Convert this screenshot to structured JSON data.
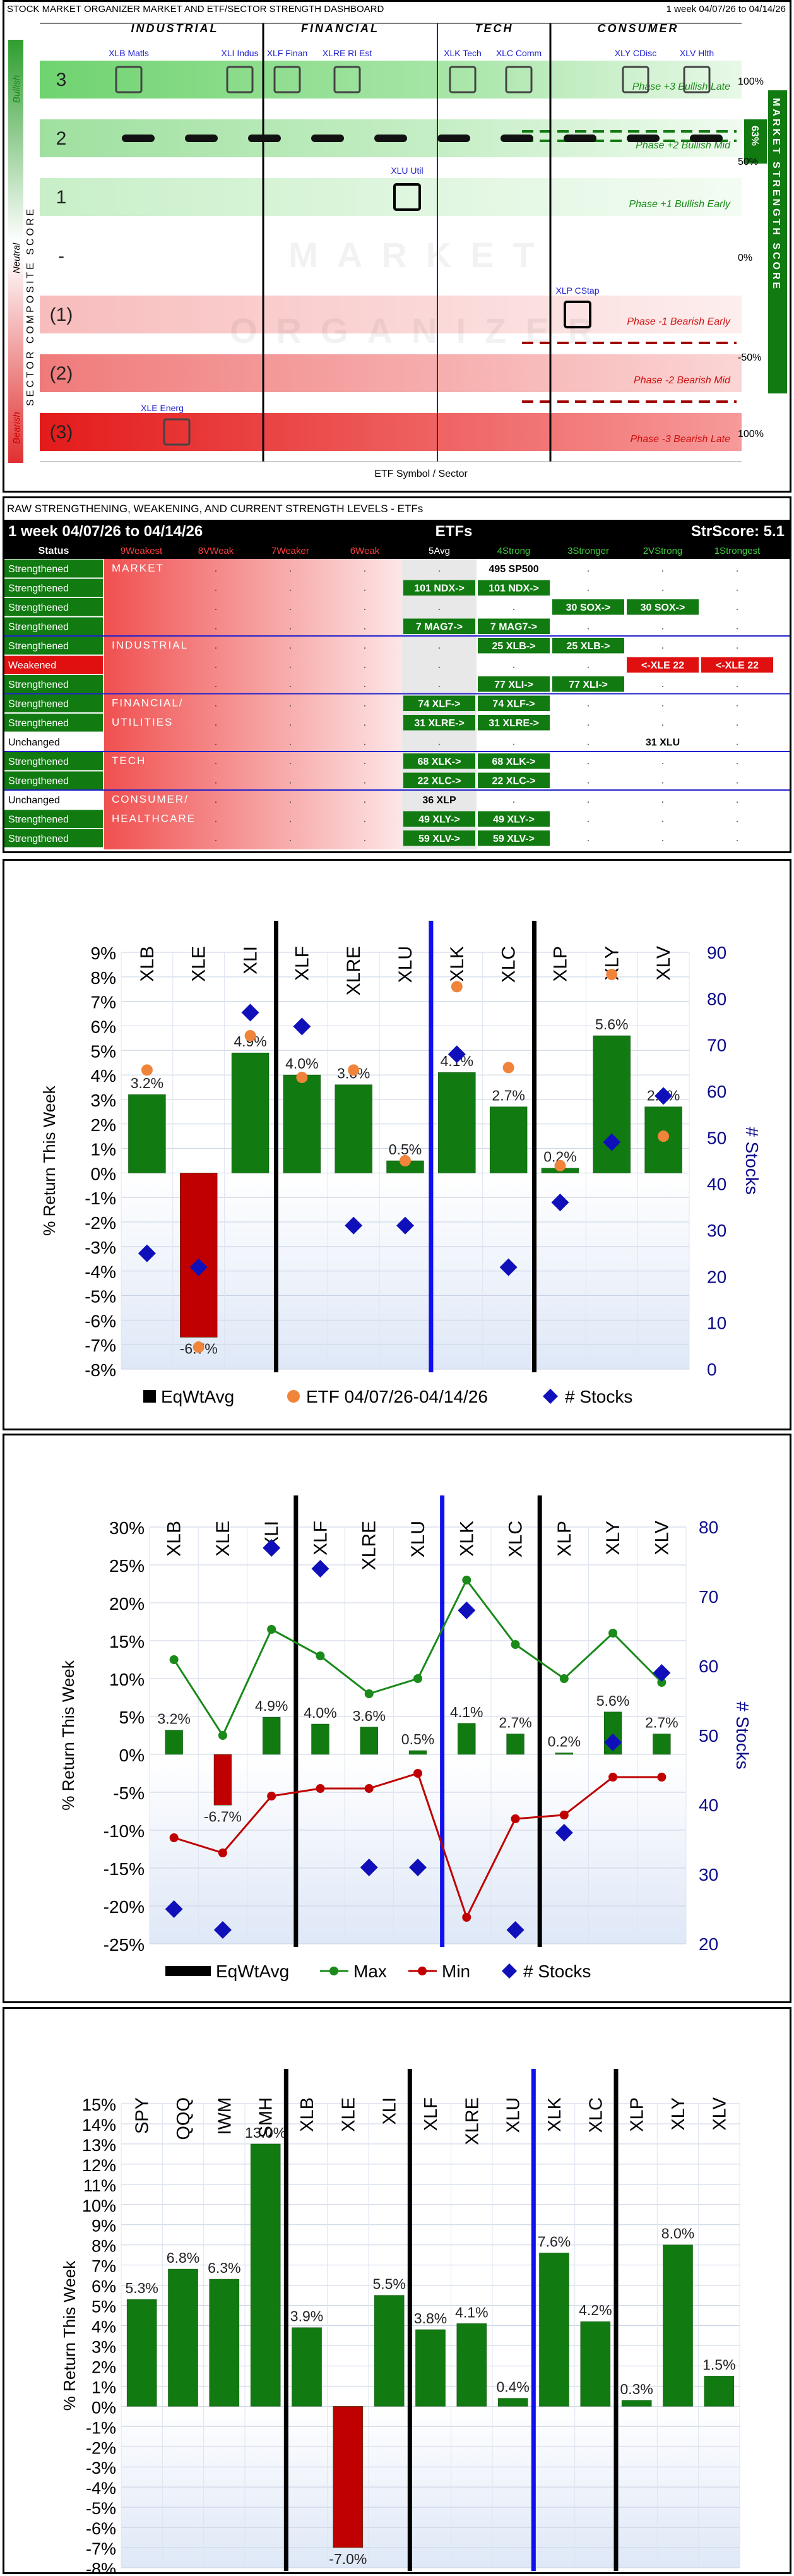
{
  "dashboard": {
    "title": "STOCK MARKET ORGANIZER MARKET AND ETF/SECTOR STRENGTH DASHBOARD",
    "period": "1 week 04/07/26 to 04/14/26",
    "groups": [
      "INDUSTRIAL",
      "FINANCIAL",
      "TECH",
      "CONSUMER"
    ],
    "left_axis_title": "SECTOR COMPOSITE SCORE",
    "right_axis_title": "MARKET STRENGTH SCORE",
    "bullish_label": "Bullish",
    "neutral_label": "Neutral",
    "bearish_label": "Bearish",
    "xlabel": "ETF Symbol / Sector",
    "watermark": [
      "MARKET",
      "ORGANIZER"
    ],
    "score_value": "63%",
    "levels": [
      {
        "label": "3",
        "phase": "Phase +3 Bullish Late",
        "pct": "100%",
        "value": 3
      },
      {
        "label": "2",
        "phase": "Phase +2 Bullish Mid",
        "pct": "50%",
        "value": 2
      },
      {
        "label": "1",
        "phase": "Phase +1 Bullish Early",
        "pct": "",
        "value": 1
      },
      {
        "label": "-",
        "phase": "",
        "pct": "0%",
        "value": 0
      },
      {
        "label": "(1)",
        "phase": "Phase -1 Bearish Early",
        "pct": "",
        "value": -1
      },
      {
        "label": "(2)",
        "phase": "Phase -2 Bearish Mid",
        "pct": "-50%",
        "value": -2
      },
      {
        "label": "(3)",
        "phase": "Phase -3 Bearish Late",
        "pct": "100%",
        "value": -3
      }
    ],
    "etfs": [
      {
        "label": "XLB Matls",
        "score": 3
      },
      {
        "label": "XLE Energ",
        "score": -3
      },
      {
        "label": "XLI Indus",
        "score": 3
      },
      {
        "label": "XLF Finan",
        "score": 3
      },
      {
        "label": "XLRE RI Est",
        "score": 3
      },
      {
        "label": "XLU Util",
        "score": 1
      },
      {
        "label": "XLK Tech",
        "score": 3
      },
      {
        "label": "XLC Comm",
        "score": 3
      },
      {
        "label": "XLP CStap",
        "score": -1
      },
      {
        "label": "XLY CDisc",
        "score": 3
      },
      {
        "label": "XLV Hlth",
        "score": 3
      }
    ]
  },
  "levels_table": {
    "caption": "RAW STRENGTHENING, WEAKENING, AND CURRENT STRENGTH LEVELS - ETFs",
    "period": "1 week 04/07/26 to 04/14/26",
    "center_title": "ETFs",
    "strscore": "StrScore: 5.1",
    "status_header": "Status",
    "columns": [
      "9Weakest",
      "8VWeak",
      "7Weaker",
      "6Weak",
      "5Avg",
      "4Strong",
      "3Stronger",
      "2VStrong",
      "1Strongest"
    ],
    "rows": [
      {
        "status": "Strengthened",
        "group": "MARKET",
        "cells": {
          "5": "495 SP500"
        }
      },
      {
        "status": "Strengthened",
        "group": "",
        "cells": {
          "4": "101 NDX->",
          "5": "101 NDX->"
        }
      },
      {
        "status": "Strengthened",
        "group": "",
        "cells": {
          "6": "30 SOX->",
          "7": "30 SOX->"
        }
      },
      {
        "status": "Strengthened",
        "group": "",
        "cells": {
          "4": "7 MAG7->",
          "5": "7 MAG7->"
        }
      },
      {
        "status": "Strengthened",
        "group": "INDUSTRIAL",
        "cells": {
          "5": "25 XLB->",
          "6": "25 XLB->"
        }
      },
      {
        "status": "Weakened",
        "group": "",
        "cells": {
          "7": "<-XLE 22",
          "8": "<-XLE 22"
        }
      },
      {
        "status": "Strengthened",
        "group": "",
        "cells": {
          "5": "77 XLI->",
          "6": "77 XLI->"
        }
      },
      {
        "status": "Strengthened",
        "group": "FINANCIAL/",
        "cells": {
          "4": "74 XLF->",
          "5": "74 XLF->"
        }
      },
      {
        "status": "Strengthened",
        "group": "UTILITIES",
        "cells": {
          "4": "31 XLRE->",
          "5": "31 XLRE->"
        }
      },
      {
        "status": "Unchanged",
        "group": "",
        "cells": {
          "7": "31 XLU"
        }
      },
      {
        "status": "Strengthened",
        "group": "TECH",
        "cells": {
          "4": "68 XLK->",
          "5": "68 XLK->"
        }
      },
      {
        "status": "Strengthened",
        "group": "",
        "cells": {
          "4": "22 XLC->",
          "5": "22 XLC->"
        }
      },
      {
        "status": "Unchanged",
        "group": "CONSUMER/",
        "cells": {
          "4": "36 XLP"
        }
      },
      {
        "status": "Strengthened",
        "group": "HEALTHCARE",
        "cells": {
          "4": "49 XLY->",
          "5": "49 XLY->"
        }
      },
      {
        "status": "Strengthened",
        "group": "",
        "cells": {
          "4": "59 XLV->",
          "5": "59 XLV->"
        }
      }
    ]
  },
  "chart_data": [
    {
      "type": "bar",
      "categories": [
        "XLB",
        "XLE",
        "XLI",
        "XLF",
        "XLRE",
        "XLU",
        "XLK",
        "XLC",
        "XLP",
        "XLY",
        "XLV"
      ],
      "series": [
        {
          "name": "EqWtAvg",
          "values": [
            3.2,
            -6.7,
            4.9,
            4.0,
            3.6,
            0.5,
            4.1,
            2.7,
            0.2,
            5.6,
            2.7
          ]
        },
        {
          "name": "ETF 04/07/26-04/14/26",
          "values": [
            4.2,
            -7.1,
            5.6,
            3.9,
            4.2,
            0.5,
            7.6,
            4.3,
            0.3,
            8.1,
            1.5
          ]
        },
        {
          "name": "# Stocks",
          "axis": "right",
          "values": [
            25,
            22,
            77,
            74,
            31,
            31,
            68,
            22,
            36,
            49,
            59
          ]
        }
      ],
      "data_labels": [
        "3.2%",
        "-6.7%",
        "4.9%",
        "4.0%",
        "3.6%",
        "0.5%",
        "4.1%",
        "2.7%",
        "0.2%",
        "5.6%",
        "2.7%"
      ],
      "ylabel": "% Return This Week",
      "y2label": "# Stocks",
      "ylim": [
        -8,
        9
      ],
      "y2lim": [
        0,
        90
      ],
      "yticks": [
        "9%",
        "8%",
        "7%",
        "6%",
        "5%",
        "4%",
        "3%",
        "2%",
        "1%",
        "0%",
        "-1%",
        "-2%",
        "-3%",
        "-4%",
        "-5%",
        "-6%",
        "-7%",
        "-8%"
      ],
      "y2ticks": [
        "90",
        "80",
        "70",
        "60",
        "50",
        "40",
        "30",
        "20",
        "10",
        "0"
      ]
    },
    {
      "type": "bar",
      "categories": [
        "XLB",
        "XLE",
        "XLI",
        "XLF",
        "XLRE",
        "XLU",
        "XLK",
        "XLC",
        "XLP",
        "XLY",
        "XLV"
      ],
      "series": [
        {
          "name": "EqWtAvg",
          "values": [
            3.2,
            -6.7,
            4.9,
            4.0,
            3.6,
            0.5,
            4.1,
            2.7,
            0.2,
            5.6,
            2.7
          ]
        },
        {
          "name": "Max",
          "values": [
            12.5,
            2.5,
            16.5,
            13.0,
            8.0,
            10.0,
            23.0,
            14.5,
            10.0,
            16.0,
            9.5
          ]
        },
        {
          "name": "Min",
          "values": [
            -11.0,
            -13.0,
            -5.5,
            -4.5,
            -4.5,
            -2.5,
            -21.5,
            -8.5,
            -8.0,
            -3.0,
            -3.0
          ]
        },
        {
          "name": "# Stocks",
          "axis": "right",
          "values": [
            25,
            22,
            77,
            74,
            31,
            31,
            68,
            22,
            36,
            49,
            59
          ]
        }
      ],
      "data_labels": [
        "3.2%",
        "-6.7%",
        "4.9%",
        "4.0%",
        "3.6%",
        "0.5%",
        "4.1%",
        "2.7%",
        "0.2%",
        "5.6%",
        "2.7%"
      ],
      "ylabel": "% Return This Week",
      "y2label": "# Stocks",
      "ylim": [
        -25,
        30
      ],
      "y2lim": [
        20,
        80
      ],
      "yticks": [
        "30%",
        "25%",
        "20%",
        "15%",
        "10%",
        "5%",
        "0%",
        "-5%",
        "-10%",
        "-15%",
        "-20%",
        "-25%"
      ],
      "y2ticks": [
        "80",
        "70",
        "60",
        "50",
        "40",
        "30",
        "20"
      ]
    },
    {
      "type": "bar",
      "categories": [
        "SPY",
        "QQQ",
        "IWM",
        "SMH",
        "XLB",
        "XLE",
        "XLI",
        "XLF",
        "XLRE",
        "XLU",
        "XLK",
        "XLC",
        "XLP",
        "XLY",
        "XLV"
      ],
      "series": [
        {
          "name": "ETF",
          "values": [
            5.3,
            6.8,
            6.3,
            13.0,
            3.9,
            -7.0,
            5.5,
            3.8,
            4.1,
            0.4,
            7.6,
            4.2,
            0.3,
            8.0,
            1.5
          ]
        }
      ],
      "data_labels": [
        "5.3%",
        "6.8%",
        "6.3%",
        "13.0%",
        "3.9%",
        "-7.0%",
        "5.5%",
        "3.8%",
        "4.1%",
        "0.4%",
        "7.6%",
        "4.2%",
        "0.3%",
        "8.0%",
        "1.5%"
      ],
      "ylabel": "% Return This Week",
      "ylim": [
        -8,
        15
      ],
      "yticks": [
        "15%",
        "14%",
        "13%",
        "12%",
        "11%",
        "10%",
        "9%",
        "8%",
        "7%",
        "6%",
        "5%",
        "4%",
        "3%",
        "2%",
        "1%",
        "0%",
        "-1%",
        "-2%",
        "-3%",
        "-4%",
        "-5%",
        "-6%",
        "-7%",
        "-8%"
      ]
    }
  ]
}
